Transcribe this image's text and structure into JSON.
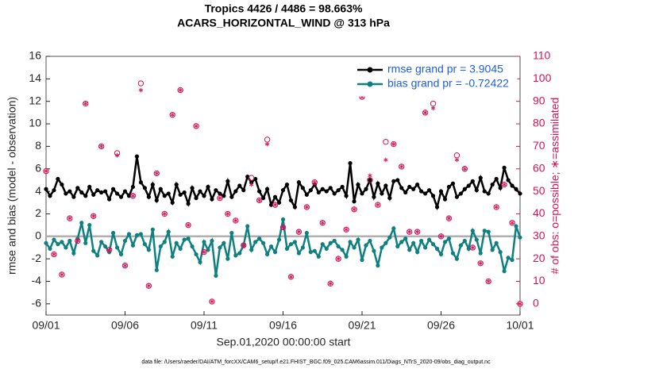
{
  "chart_data": {
    "type": "line",
    "title": "Tropics 4426 / 4486 = 98.663%",
    "subtitle": "ACARS_HORIZONTAL_WIND @ 313 hPa",
    "xlabel": "Sep.01,2020 00:00:00 start",
    "ylabel": "rmse and bias (model - observation)",
    "y2label": "# of obs: o=possible; ∗=assimilated",
    "footnote": "data file: /Users/raeder/DAI/ATM_forcXX/CAM6_setup/f.e21.FHIST_BGC.f09_025.CAM6assim.011/Diags_NTrS_2020-09/obs_diag_output.nc",
    "xlim": [
      0,
      30
    ],
    "xticks": [
      {
        "value": 0,
        "label": "09/01"
      },
      {
        "value": 5,
        "label": "09/06"
      },
      {
        "value": 10,
        "label": "09/11"
      },
      {
        "value": 15,
        "label": "09/16"
      },
      {
        "value": 20,
        "label": "09/21"
      },
      {
        "value": 25,
        "label": "09/26"
      },
      {
        "value": 30,
        "label": "10/01"
      }
    ],
    "ylim": [
      -7,
      16
    ],
    "yticks": [
      -6,
      -4,
      -2,
      0,
      2,
      4,
      6,
      8,
      10,
      12,
      14,
      16
    ],
    "y2lim": [
      -5,
      110
    ],
    "y2ticks": [
      0,
      10,
      20,
      30,
      40,
      50,
      60,
      70,
      80,
      90,
      100,
      110
    ],
    "reference_line": 0,
    "legend": "upper right",
    "x": [
      0,
      0.25,
      0.5,
      0.75,
      1,
      1.25,
      1.5,
      1.75,
      2,
      2.25,
      2.5,
      2.75,
      3,
      3.25,
      3.5,
      3.75,
      4,
      4.25,
      4.5,
      4.75,
      5,
      5.25,
      5.5,
      5.75,
      6,
      6.25,
      6.5,
      6.75,
      7,
      7.25,
      7.5,
      7.75,
      8,
      8.25,
      8.5,
      8.75,
      9,
      9.25,
      9.5,
      9.75,
      10,
      10.25,
      10.5,
      10.75,
      11,
      11.25,
      11.5,
      11.75,
      12,
      12.25,
      12.5,
      12.75,
      13,
      13.25,
      13.5,
      13.75,
      14,
      14.25,
      14.5,
      14.75,
      15,
      15.25,
      15.5,
      15.75,
      16,
      16.25,
      16.5,
      16.75,
      17,
      17.25,
      17.5,
      17.75,
      18,
      18.25,
      18.5,
      18.75,
      19,
      19.25,
      19.5,
      19.75,
      20,
      20.25,
      20.5,
      20.75,
      21,
      21.25,
      21.5,
      21.75,
      22,
      22.25,
      22.5,
      22.75,
      23,
      23.25,
      23.5,
      23.75,
      24,
      24.25,
      24.5,
      24.75,
      25,
      25.25,
      25.5,
      25.75,
      26,
      26.25,
      26.5,
      26.75,
      27,
      27.25,
      27.5,
      27.75,
      28,
      28.25,
      28.5,
      28.75,
      29,
      29.25,
      29.5,
      29.75,
      30
    ],
    "series": [
      {
        "name": "rmse grand pr = 3.9045",
        "color": "#000000",
        "values": [
          4.2,
          3.6,
          4.1,
          5.1,
          4.6,
          3.8,
          4.0,
          3.5,
          4.3,
          3.9,
          3.6,
          4.4,
          3.7,
          4.1,
          3.9,
          4.0,
          3.3,
          4.2,
          3.8,
          3.5,
          4.0,
          3.6,
          4.4,
          7.1,
          4.8,
          4.3,
          3.5,
          4.6,
          3.2,
          4.2,
          3.6,
          3.8,
          3.0,
          4.6,
          3.7,
          3.9,
          2.9,
          4.3,
          3.4,
          4.0,
          3.6,
          4.4,
          3.3,
          4.1,
          3.8,
          3.6,
          4.9,
          3.5,
          4.0,
          4.5,
          4.1,
          5.3,
          4.8,
          5.1,
          4.0,
          3.4,
          4.2,
          2.8,
          3.5,
          3.0,
          4.1,
          4.6,
          3.2,
          2.6,
          4.8,
          4.3,
          3.7,
          4.1,
          4.6,
          3.9,
          4.2,
          4.0,
          4.3,
          3.8,
          4.1,
          4.4,
          3.6,
          6.5,
          3.1,
          4.6,
          3.8,
          4.2,
          5.0,
          3.5,
          4.7,
          3.8,
          4.5,
          3.4,
          4.9,
          5.0,
          4.3,
          3.9,
          4.4,
          4.2,
          4.6,
          4.0,
          3.8,
          4.1,
          3.6,
          2.6,
          4.0,
          3.3,
          4.4,
          4.7,
          3.5,
          3.8,
          4.2,
          4.5,
          4.9,
          4.1,
          5.2,
          4.0,
          3.8,
          4.6,
          5.1,
          4.3,
          6.1,
          5.0,
          4.5,
          4.2,
          3.8
        ]
      },
      {
        "name": "bias grand pr = -0.72422",
        "color": "#0e8080",
        "values": [
          -0.6,
          -1.1,
          -0.3,
          -0.7,
          -0.5,
          -1.0,
          -0.4,
          -1.5,
          -0.2,
          1.2,
          -0.6,
          1.0,
          -1.3,
          -1.7,
          -0.5,
          -0.9,
          -1.4,
          0.3,
          -1.0,
          -1.6,
          -0.4,
          0.2,
          -0.8,
          0.1,
          0.2,
          -0.7,
          -1.2,
          0.6,
          -3.0,
          -0.9,
          -0.5,
          0.4,
          -1.8,
          -0.6,
          -1.1,
          -0.3,
          -0.2,
          -0.9,
          -1.6,
          -2.3,
          -0.5,
          -1.2,
          -0.4,
          -3.5,
          -1.0,
          -0.6,
          -2.0,
          0.3,
          -1.7,
          -1.5,
          -0.8,
          0.9,
          -1.2,
          -0.5,
          -0.2,
          -0.6,
          -1.6,
          -0.9,
          -1.4,
          -0.3,
          1.5,
          -1.1,
          -0.7,
          -0.5,
          -1.5,
          -1.0,
          0.3,
          -1.4,
          -1.3,
          -1.8,
          -0.7,
          -1.1,
          -0.6,
          -0.4,
          -0.9,
          -1.2,
          -1.8,
          -0.5,
          -1.0,
          -0.3,
          -2.1,
          -0.8,
          -0.4,
          -1.3,
          -2.6,
          -1.0,
          -0.6,
          -0.1,
          0.7,
          -0.9,
          -0.5,
          -0.2,
          -1.2,
          -0.6,
          -1.4,
          -0.4,
          -1.0,
          -0.3,
          -0.7,
          -1.1,
          -1.6,
          -0.5,
          -0.2,
          -1.5,
          -2.0,
          -0.8,
          -0.4,
          -1.1,
          0.5,
          -0.3,
          -1.5,
          0.5,
          0.4,
          -1.2,
          -0.6,
          -1.4,
          -3.1,
          -1.9,
          -2.1,
          0.9,
          -0.1
        ]
      },
      {
        "marker": "o",
        "axis": "y2",
        "color": "#d4145a",
        "x": [
          0,
          0.5,
          1,
          1.5,
          2,
          2.5,
          3,
          3.5,
          4,
          4.5,
          5,
          5.5,
          6,
          6.5,
          7,
          7.5,
          8,
          8.5,
          9,
          9.5,
          10,
          10.5,
          11,
          11.5,
          12,
          12.5,
          13,
          13.5,
          14,
          14.5,
          15,
          15.5,
          16,
          16.5,
          17,
          17.5,
          18,
          18.5,
          19,
          19.5,
          20,
          20.5,
          21,
          21.5,
          22,
          22.5,
          23,
          23.5,
          24,
          24.5,
          25,
          25.5,
          26,
          26.5,
          27,
          27.5,
          28,
          28.5,
          29,
          29.5,
          30
        ],
        "values": [
          59,
          22,
          13,
          38,
          28,
          89,
          39,
          70,
          24,
          67,
          17,
          48,
          98,
          8,
          58,
          40,
          84,
          95,
          35,
          79,
          23,
          1,
          47,
          40,
          37,
          26,
          56,
          46,
          73,
          44,
          34,
          12,
          32,
          43,
          54,
          36,
          9,
          20,
          33,
          42,
          92,
          55,
          44,
          72,
          71,
          61,
          32,
          32,
          85,
          89,
          30,
          38,
          66,
          60,
          25,
          18,
          10,
          43,
          53,
          36,
          0
        ]
      },
      {
        "marker": "*",
        "axis": "y2",
        "color": "#d4145a",
        "x": [
          0,
          0.5,
          1,
          1.5,
          2,
          2.5,
          3,
          3.5,
          4,
          4.5,
          5,
          5.5,
          6,
          6.5,
          7,
          7.5,
          8,
          8.5,
          9,
          9.5,
          10,
          10.5,
          11,
          11.5,
          12,
          12.5,
          13,
          13.5,
          14,
          14.5,
          15,
          15.5,
          16,
          16.5,
          17,
          17.5,
          18,
          18.5,
          19,
          19.5,
          20,
          20.5,
          21,
          21.5,
          22,
          22.5,
          23,
          23.5,
          24,
          24.5,
          25,
          25.5,
          26,
          26.5,
          27,
          27.5,
          28,
          28.5,
          29,
          29.5,
          30
        ],
        "values": [
          59,
          22,
          13,
          38,
          28,
          89,
          39,
          70,
          24,
          66,
          17,
          48,
          95,
          8,
          58,
          40,
          84,
          95,
          35,
          79,
          23,
          1,
          47,
          40,
          37,
          26,
          53,
          46,
          71,
          44,
          34,
          12,
          32,
          43,
          54,
          36,
          9,
          20,
          33,
          42,
          92,
          57,
          44,
          64,
          71,
          61,
          32,
          32,
          85,
          87,
          30,
          38,
          64,
          60,
          25,
          18,
          10,
          43,
          53,
          36,
          0
        ]
      }
    ]
  }
}
